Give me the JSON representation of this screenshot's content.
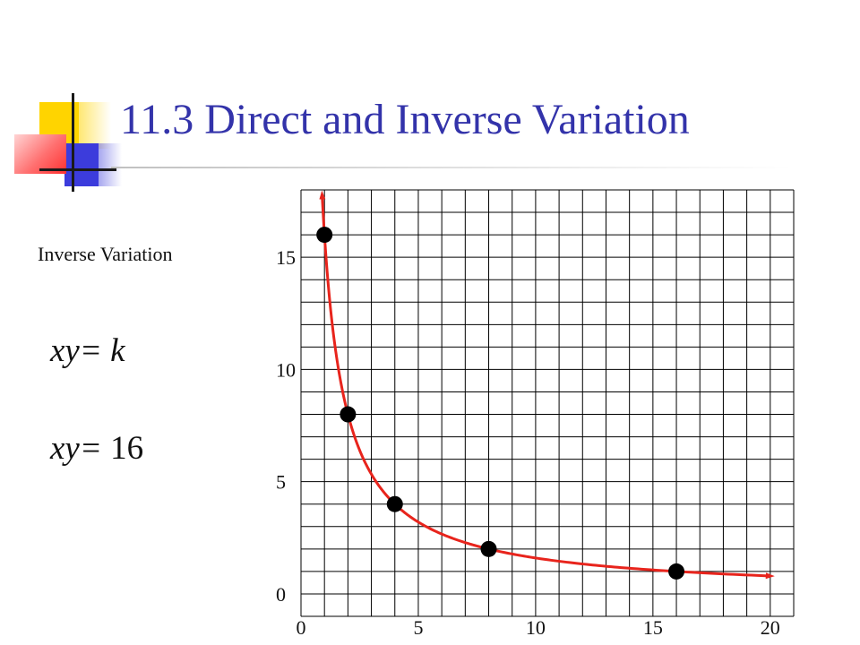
{
  "slide": {
    "title": "11.3 Direct and Inverse Variation",
    "subtitle": "Inverse Variation",
    "formula1": {
      "lhs": "xy",
      "rest": "= k"
    },
    "formula2": {
      "lhs": "xy",
      "rest": "= ",
      "value": "16"
    }
  },
  "colors": {
    "title": "#3333aa",
    "curve": "#e8241c",
    "points": "#000000",
    "grid": "#000000"
  },
  "chart_data": {
    "type": "scatter",
    "title": "",
    "xlabel": "",
    "ylabel": "",
    "xlim": [
      0,
      21
    ],
    "ylim": [
      -1,
      18
    ],
    "grid": true,
    "x_ticks": [
      {
        "value": 0,
        "label": "0"
      },
      {
        "value": 5,
        "label": "5"
      },
      {
        "value": 10,
        "label": "10"
      },
      {
        "value": 15,
        "label": "15"
      },
      {
        "value": 20,
        "label": "20"
      }
    ],
    "y_ticks": [
      {
        "value": 0,
        "label": "0"
      },
      {
        "value": 5,
        "label": "5"
      },
      {
        "value": 10,
        "label": "10"
      },
      {
        "value": 15,
        "label": "15"
      }
    ],
    "points": [
      {
        "x": 1,
        "y": 16
      },
      {
        "x": 2,
        "y": 8
      },
      {
        "x": 4,
        "y": 4
      },
      {
        "x": 8,
        "y": 2
      },
      {
        "x": 16,
        "y": 1
      }
    ],
    "curve": {
      "equation": "xy = 16",
      "k": 16,
      "x_start": 0.9,
      "x_end": 20,
      "arrows": "both"
    }
  }
}
